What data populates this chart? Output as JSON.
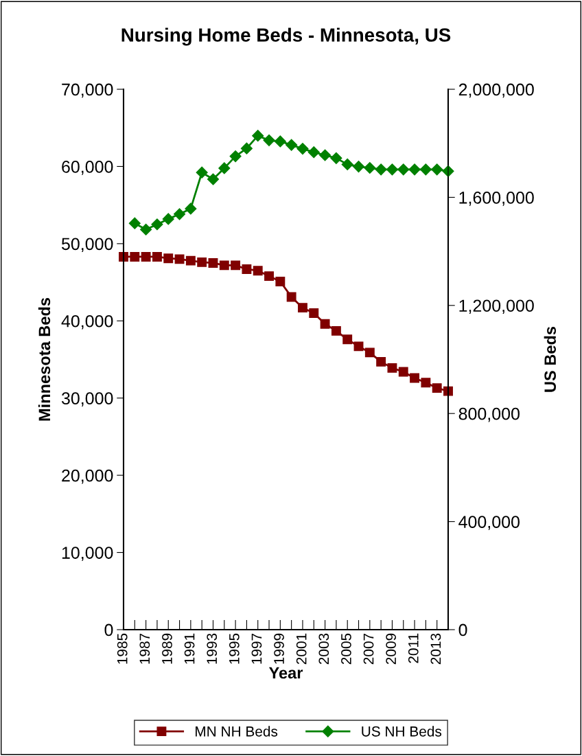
{
  "chart_data": {
    "type": "line",
    "title": "Nursing Home Beds - Minnesota, US",
    "xlabel": "Year",
    "ylabel": "Minnesota Beds",
    "y2label": "US Beds",
    "categories": [
      "1985",
      null,
      "1987",
      null,
      "1989",
      null,
      "1991",
      null,
      "1993",
      null,
      "1995",
      null,
      "1997",
      null,
      "1999",
      null,
      "2001",
      null,
      "2003",
      null,
      "2005",
      null,
      "2007",
      null,
      "2009",
      null,
      "2011",
      null,
      "2013",
      null
    ],
    "series": [
      {
        "name": "MN NH Beds",
        "color": "#800000",
        "marker": "square",
        "values": [
          48300,
          48300,
          48300,
          48300,
          48100,
          48000,
          47800,
          47600,
          47500,
          47200,
          47200,
          46700,
          46500,
          45800,
          45100,
          43100,
          41700,
          41000,
          39600,
          38700,
          37600,
          36700,
          35900,
          34700,
          33900,
          33400,
          32600,
          32000,
          31300,
          30900
        ]
      },
      {
        "name": "US NH Beds",
        "color": "#008000",
        "marker": "diamond",
        "axis": "y2",
        "values": [
          null,
          1504000,
          1481000,
          1500000,
          1520000,
          1538000,
          1558000,
          1692000,
          1667000,
          1708000,
          1752000,
          1781000,
          1828000,
          1811000,
          1807000,
          1794000,
          1780000,
          1767000,
          1756000,
          1745000,
          1722000,
          1714000,
          1709000,
          1703000,
          1703000,
          1703000,
          1703000,
          1703000,
          1703000,
          1697000
        ]
      }
    ],
    "ylim": [
      0,
      70000
    ],
    "yticks": [
      {
        "value": 0,
        "label": "0"
      },
      {
        "value": 10000,
        "label": "10,000"
      },
      {
        "value": 20000,
        "label": "20,000"
      },
      {
        "value": 30000,
        "label": "30,000"
      },
      {
        "value": 40000,
        "label": "40,000"
      },
      {
        "value": 50000,
        "label": "50,000"
      },
      {
        "value": 60000,
        "label": "60,000"
      },
      {
        "value": 70000,
        "label": "70,000"
      }
    ],
    "y2lim": [
      0,
      2000000
    ],
    "y2ticks": [
      {
        "value": 0,
        "label": "0"
      },
      {
        "value": 400000,
        "label": "400,000"
      },
      {
        "value": 800000,
        "label": "800,000"
      },
      {
        "value": 1200000,
        "label": "1,200,000"
      },
      {
        "value": 1600000,
        "label": "1,600,000"
      },
      {
        "value": 2000000,
        "label": "2,000,000"
      }
    ],
    "grid": false,
    "legend": "bottom",
    "line_style": "solid"
  }
}
